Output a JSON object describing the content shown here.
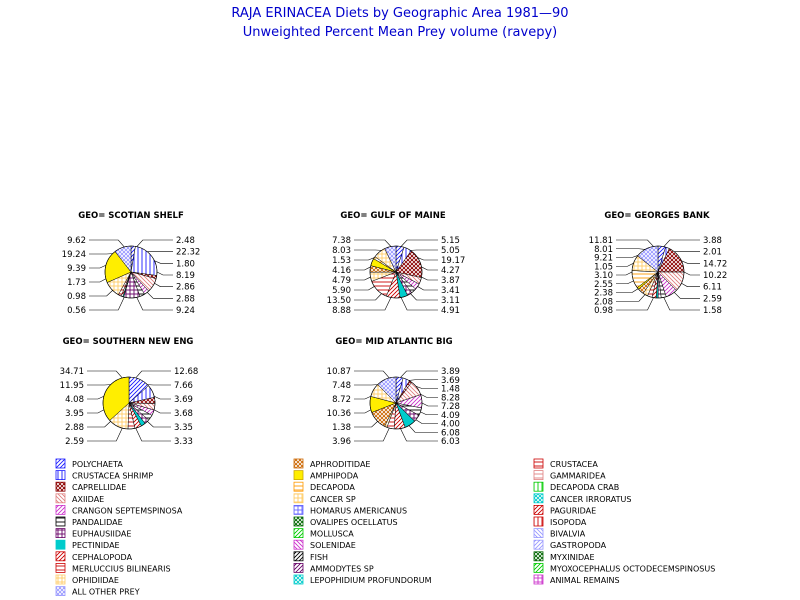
{
  "title": "RAJA ERINACEA Diets by Geographic Area 1981—90",
  "subtitle": "Unweighted Percent Mean Prey volume (ravepy)",
  "chart_data": [
    {
      "type": "pie",
      "title": "GEO= SCOTIAN SHELF",
      "slices": [
        {
          "category": "POLYCHAETA",
          "value": 2.48
        },
        {
          "category": "CRUSTACEA SHRIMP",
          "value": 22.32
        },
        {
          "category": "CAPRELLIDAE",
          "value": 1.8
        },
        {
          "category": "AXIIDAE",
          "value": 8.19
        },
        {
          "category": "CRANGON SEPTEMSPINOSA",
          "value": 2.86
        },
        {
          "category": "PANDALIDAE",
          "value": 2.88
        },
        {
          "category": "EUPHAUSIIDAE",
          "value": 9.24
        },
        {
          "category": "PECTINIDAE",
          "value": 0.56
        },
        {
          "category": "CEPHALOPODA",
          "value": 0.98
        },
        {
          "category": "MERLUCCIUS BILINEARIS",
          "value": 1.73
        },
        {
          "category": "OPHIDIIDAE",
          "value": 9.39
        },
        {
          "category": "AMPHIPODA",
          "value": 19.24
        },
        {
          "category": "ALL OTHER PREY",
          "value": 9.62
        }
      ],
      "right_labels": [
        "2.48",
        "22.32",
        "1.80",
        "8.19",
        "2.86",
        "2.88",
        "9.24"
      ],
      "left_labels": [
        "9.62",
        "19.24",
        "9.39",
        "1.73",
        "0.98",
        "0.56"
      ]
    },
    {
      "type": "pie",
      "title": "GEO= GULF OF MAINE",
      "slices": [
        {
          "category": "POLYCHAETA",
          "value": 5.15
        },
        {
          "category": "CRUSTACEA SHRIMP",
          "value": 5.05
        },
        {
          "category": "CAPRELLIDAE",
          "value": 19.17
        },
        {
          "category": "AXIIDAE",
          "value": 4.27
        },
        {
          "category": "CRANGON SEPTEMSPINOSA",
          "value": 3.87
        },
        {
          "category": "PANDALIDAE",
          "value": 3.41
        },
        {
          "category": "EUPHAUSIIDAE",
          "value": 3.11
        },
        {
          "category": "PECTINIDAE",
          "value": 4.91
        },
        {
          "category": "CEPHALOPODA",
          "value": 8.88
        },
        {
          "category": "MERLUCCIUS BILINEARIS",
          "value": 13.5
        },
        {
          "category": "OPHIDIIDAE",
          "value": 5.9
        },
        {
          "category": "APHRODITIDAE",
          "value": 4.16
        },
        {
          "category": "AMPHIPODA",
          "value": 4.79
        },
        {
          "category": "DECAPODA",
          "value": 1.53
        },
        {
          "category": "CANCER SP",
          "value": 8.03
        },
        {
          "category": "ALL OTHER PREY",
          "value": 7.38
        }
      ],
      "right_labels": [
        "5.15",
        "5.05",
        "19.17",
        "4.27",
        "3.87",
        "3.41",
        "3.11",
        "4.91"
      ],
      "left_labels": [
        "7.38",
        "8.03",
        "1.53",
        "4.16",
        "4.79",
        "5.90",
        "13.50",
        "8.88"
      ]
    },
    {
      "type": "pie",
      "title": "GEO= GEORGES BANK",
      "slices": [
        {
          "category": "POLYCHAETA",
          "value": 3.88
        },
        {
          "category": "CRUSTACEA SHRIMP",
          "value": 2.01
        },
        {
          "category": "CAPRELLIDAE",
          "value": 14.72
        },
        {
          "category": "AXIIDAE",
          "value": 10.22
        },
        {
          "category": "CRANGON SEPTEMSPINOSA",
          "value": 6.11
        },
        {
          "category": "PANDALIDAE",
          "value": 2.59
        },
        {
          "category": "EUPHAUSIIDAE",
          "value": 1.58
        },
        {
          "category": "PECTINIDAE",
          "value": 0.98
        },
        {
          "category": "CEPHALOPODA",
          "value": 2.08
        },
        {
          "category": "MERLUCCIUS BILINEARIS",
          "value": 2.38
        },
        {
          "category": "OPHIDIIDAE",
          "value": 2.55
        },
        {
          "category": "APHRODITIDAE",
          "value": 3.1
        },
        {
          "category": "AMPHIPODA",
          "value": 1.05
        },
        {
          "category": "DECAPODA",
          "value": 9.21
        },
        {
          "category": "CANCER SP",
          "value": 8.01
        },
        {
          "category": "ALL OTHER PREY",
          "value": 11.81
        }
      ],
      "right_labels": [
        "3.88",
        "2.01",
        "14.72",
        "10.22",
        "6.11",
        "2.59",
        "1.58"
      ],
      "left_labels": [
        "11.81",
        "8.01",
        "9.21",
        "1.05",
        "3.10",
        "2.55",
        "2.38",
        "2.08",
        "0.98"
      ]
    },
    {
      "type": "pie",
      "title": "GEO= SOUTHERN NEW ENG",
      "slices": [
        {
          "category": "POLYCHAETA",
          "value": 12.68
        },
        {
          "category": "CRUSTACEA SHRIMP",
          "value": 7.66
        },
        {
          "category": "CAPRELLIDAE",
          "value": 3.69
        },
        {
          "category": "AXIIDAE",
          "value": 3.68
        },
        {
          "category": "CRANGON SEPTEMSPINOSA",
          "value": 3.35
        },
        {
          "category": "PANDALIDAE",
          "value": 3.33
        },
        {
          "category": "EUPHAUSIIDAE",
          "value": 2.88
        },
        {
          "category": "PECTINIDAE",
          "value": 2.59
        },
        {
          "category": "CEPHALOPODA",
          "value": 3.95
        },
        {
          "category": "MERLUCCIUS BILINEARIS",
          "value": 4.08
        },
        {
          "category": "OPHIDIIDAE",
          "value": 11.95
        },
        {
          "category": "AMPHIPODA",
          "value": 34.71
        }
      ],
      "right_labels": [
        "12.68",
        "7.66",
        "3.69",
        "3.68",
        "3.35",
        "3.33"
      ],
      "left_labels": [
        "34.71",
        "11.95",
        "4.08",
        "3.95",
        "2.88",
        "2.59"
      ]
    },
    {
      "type": "pie",
      "title": "GEO= MID ATLANTIC BIG",
      "slices": [
        {
          "category": "POLYCHAETA",
          "value": 3.89
        },
        {
          "category": "CRUSTACEA SHRIMP",
          "value": 3.69
        },
        {
          "category": "CAPRELLIDAE",
          "value": 1.48
        },
        {
          "category": "AXIIDAE",
          "value": 8.28
        },
        {
          "category": "CRANGON SEPTEMSPINOSA",
          "value": 7.28
        },
        {
          "category": "PANDALIDAE",
          "value": 4.09
        },
        {
          "category": "EUPHAUSIIDAE",
          "value": 4.0
        },
        {
          "category": "PECTINIDAE",
          "value": 6.08
        },
        {
          "category": "CEPHALOPODA",
          "value": 6.03
        },
        {
          "category": "MERLUCCIUS BILINEARIS",
          "value": 3.96
        },
        {
          "category": "OPHIDIIDAE",
          "value": 1.38
        },
        {
          "category": "APHRODITIDAE",
          "value": 10.36
        },
        {
          "category": "AMPHIPODA",
          "value": 8.72
        },
        {
          "category": "CANCER SP",
          "value": 7.48
        },
        {
          "category": "ALL OTHER PREY",
          "value": 10.87
        }
      ],
      "right_labels": [
        "3.89",
        "3.69",
        "1.48",
        "8.28",
        "7.28",
        "4.09",
        "4.00",
        "6.08",
        "6.03"
      ],
      "left_labels": [
        "10.87",
        "7.48",
        "8.72",
        "10.36",
        "1.38",
        "3.96"
      ]
    }
  ],
  "legend": [
    {
      "label": "POLYCHAETA",
      "color": "#1a1aff",
      "pattern": "diag-up"
    },
    {
      "label": "CRUSTACEA SHRIMP",
      "color": "#1a1aff",
      "pattern": "vert"
    },
    {
      "label": "CAPRELLIDAE",
      "color": "#8b0000",
      "pattern": "cross-x"
    },
    {
      "label": "AXIIDAE",
      "color": "#e08080",
      "pattern": "diag-down"
    },
    {
      "label": "CRANGON SEPTEMSPINOSA",
      "color": "#cc33cc",
      "pattern": "diag-up"
    },
    {
      "label": "PANDALIDAE",
      "color": "#000000",
      "pattern": "horiz"
    },
    {
      "label": "EUPHAUSIIDAE",
      "color": "#660066",
      "pattern": "grid"
    },
    {
      "label": "PECTINIDAE",
      "color": "#00cccc",
      "pattern": "solid"
    },
    {
      "label": "CEPHALOPODA",
      "color": "#cc0000",
      "pattern": "diag-up"
    },
    {
      "label": "MERLUCCIUS BILINEARIS",
      "color": "#cc0000",
      "pattern": "horiz"
    },
    {
      "label": "OPHIDIIDAE",
      "color": "#ffcc66",
      "pattern": "grid"
    },
    {
      "label": "ALL OTHER PREY",
      "color": "#9999ff",
      "pattern": "cross-x"
    },
    {
      "label": "APHRODITIDAE",
      "color": "#cc6600",
      "pattern": "cross-x"
    },
    {
      "label": "AMPHIPODA",
      "color": "#ffee00",
      "pattern": "solid"
    },
    {
      "label": "DECAPODA",
      "color": "#ff9900",
      "pattern": "horiz"
    },
    {
      "label": "CANCER SP",
      "color": "#ffcc66",
      "pattern": "grid"
    },
    {
      "label": "HOMARUS AMERICANUS",
      "color": "#6666ff",
      "pattern": "grid"
    },
    {
      "label": "OVALIPES OCELLATUS",
      "color": "#006600",
      "pattern": "cross-x"
    },
    {
      "label": "MOLLUSCA",
      "color": "#00cc00",
      "pattern": "diag-up"
    },
    {
      "label": "SOLENIDAE",
      "color": "#cc33cc",
      "pattern": "diag-down"
    },
    {
      "label": "FISH",
      "color": "#000000",
      "pattern": "diag-up"
    },
    {
      "label": "AMMODYTES SP",
      "color": "#660066",
      "pattern": "diag-up"
    },
    {
      "label": "LEPOPHIDIUM PROFUNDORUM",
      "color": "#00cccc",
      "pattern": "cross-x"
    },
    {
      "label": "CRUSTACEA",
      "color": "#cc0000",
      "pattern": "horiz"
    },
    {
      "label": "GAMMARIDEA",
      "color": "#e08080",
      "pattern": "horiz"
    },
    {
      "label": "DECAPODA CRAB",
      "color": "#00cc00",
      "pattern": "vert"
    },
    {
      "label": "CANCER IRRORATUS",
      "color": "#00cccc",
      "pattern": "cross-x"
    },
    {
      "label": "PAGURIDAE",
      "color": "#cc0000",
      "pattern": "diag-up"
    },
    {
      "label": "ISOPODA",
      "color": "#cc0000",
      "pattern": "vert"
    },
    {
      "label": "BIVALVIA",
      "color": "#9999ff",
      "pattern": "diag-down"
    },
    {
      "label": "GASTROPODA",
      "color": "#9999ff",
      "pattern": "diag-up"
    },
    {
      "label": "MYXINIDAE",
      "color": "#006600",
      "pattern": "cross-x"
    },
    {
      "label": "MYOXOCEPHALUS OCTODECEMSPINOSUS",
      "color": "#00cc00",
      "pattern": "diag-up"
    },
    {
      "label": "ANIMAL REMAINS",
      "color": "#cc33cc",
      "pattern": "grid"
    }
  ]
}
